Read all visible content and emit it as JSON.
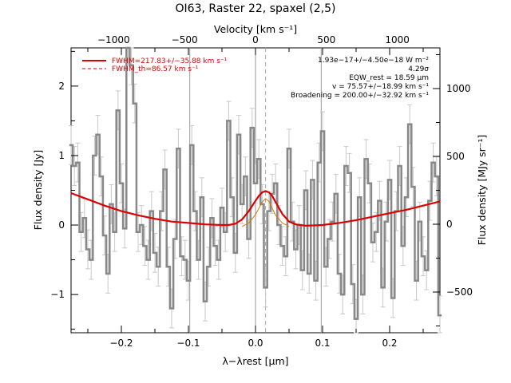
{
  "chart_data": {
    "type": "line",
    "title": "OI63, Raster 22, spaxel (2,5)",
    "xlabel": "λ−λrest [μm]",
    "ylabel": "Flux density [Jy]",
    "top_xlabel": "Velocity [km s⁻¹]",
    "right_ylabel": "Flux density [MJy sr⁻¹]",
    "xlim": [
      -0.275,
      0.275
    ],
    "ylim": [
      -1.55,
      2.55
    ],
    "top_xlim": [
      -1300,
      1300
    ],
    "right_ylim": [
      -800,
      1300
    ],
    "x_ticks": [
      -0.2,
      -0.1,
      0.0,
      0.1,
      0.2
    ],
    "x_tick_labels": [
      "−0.2",
      "−0.1",
      "0.0",
      "0.1",
      "0.2"
    ],
    "y_ticks": [
      -1,
      0,
      1,
      2
    ],
    "y_tick_labels": [
      "−1",
      "0",
      "1",
      "2"
    ],
    "top_ticks": [
      -1000,
      -500,
      0,
      500,
      1000
    ],
    "top_tick_labels": [
      "−1000",
      "−500",
      "0",
      "500",
      "1000"
    ],
    "right_ticks": [
      -500,
      0,
      500,
      1000
    ],
    "right_tick_labels": [
      "−500",
      "0",
      "500",
      "1000"
    ],
    "vertical_lines": [
      -0.098,
      0.0,
      0.098
    ],
    "dashed_line_x": 0.015,
    "legend": [
      {
        "label": "FWHM=217.83+/−35.88 km s⁻¹",
        "style": "solid",
        "color": "#dd0000"
      },
      {
        "label": "FWHM_th=86.57 km s⁻¹",
        "style": "dashed",
        "color": "#dd0000"
      }
    ],
    "annotations": [
      "1.93e−17+/−4.50e−18 W m⁻²",
      "4.29σ",
      "EQW_rest = 18.59 μm",
      "v = 75.57+/−18.99 km s⁻¹",
      "Broadening = 200.00+/−32.92 km s⁻¹"
    ],
    "series": [
      {
        "name": "Data",
        "color": "#888888",
        "x": [
          -0.275,
          -0.27,
          -0.265,
          -0.26,
          -0.255,
          -0.25,
          -0.245,
          -0.24,
          -0.235,
          -0.23,
          -0.225,
          -0.22,
          -0.215,
          -0.21,
          -0.205,
          -0.2,
          -0.195,
          -0.19,
          -0.185,
          -0.18,
          -0.175,
          -0.17,
          -0.165,
          -0.16,
          -0.155,
          -0.15,
          -0.145,
          -0.14,
          -0.135,
          -0.13,
          -0.125,
          -0.12,
          -0.115,
          -0.11,
          -0.105,
          -0.1,
          -0.095,
          -0.09,
          -0.085,
          -0.08,
          -0.075,
          -0.07,
          -0.065,
          -0.06,
          -0.055,
          -0.05,
          -0.045,
          -0.04,
          -0.035,
          -0.03,
          -0.025,
          -0.02,
          -0.015,
          -0.01,
          -0.005,
          0.0,
          0.005,
          0.01,
          0.015,
          0.02,
          0.025,
          0.03,
          0.035,
          0.04,
          0.045,
          0.05,
          0.055,
          0.06,
          0.065,
          0.07,
          0.075,
          0.08,
          0.085,
          0.09,
          0.095,
          0.1,
          0.105,
          0.11,
          0.115,
          0.12,
          0.125,
          0.13,
          0.135,
          0.14,
          0.145,
          0.15,
          0.155,
          0.16,
          0.165,
          0.17,
          0.175,
          0.18,
          0.185,
          0.19,
          0.195,
          0.2,
          0.205,
          0.21,
          0.215,
          0.22,
          0.225,
          0.23,
          0.235,
          0.24,
          0.245,
          0.25,
          0.255,
          0.26,
          0.265,
          0.27,
          0.275
        ],
        "y": [
          1.15,
          0.85,
          0.9,
          -0.1,
          0.1,
          -0.35,
          -0.5,
          1.0,
          1.3,
          0.7,
          -0.15,
          -0.7,
          0.3,
          -0.1,
          1.65,
          0.6,
          -0.05,
          2.6,
          2.3,
          1.75,
          -0.1,
          0.0,
          -0.3,
          -0.5,
          0.2,
          -0.4,
          -0.6,
          0.2,
          0.8,
          -0.6,
          -1.2,
          -0.2,
          1.1,
          -0.45,
          -0.5,
          -0.8,
          1.15,
          0.2,
          -0.5,
          0.4,
          -1.1,
          -0.6,
          0.1,
          -0.3,
          -0.5,
          0.25,
          -0.1,
          1.5,
          0.4,
          -0.4,
          1.3,
          0.3,
          0.7,
          -0.2,
          1.4,
          0.6,
          0.95,
          0.3,
          -0.9,
          0.2,
          0.45,
          0.6,
          0.0,
          -0.3,
          -0.45,
          1.1,
          0.05,
          -0.35,
          0.0,
          -0.65,
          0.5,
          -0.7,
          0.65,
          -0.8,
          0.9,
          1.35,
          -0.6,
          -0.2,
          0.05,
          0.45,
          -0.7,
          -1.0,
          0.85,
          0.75,
          -0.85,
          -1.35,
          0.4,
          -1.0,
          0.95,
          0.6,
          -0.25,
          -0.1,
          0.35,
          -0.9,
          0.05,
          0.65,
          -1.05,
          0.2,
          0.85,
          -0.3,
          0.4,
          1.45,
          0.55,
          -0.8,
          0.05,
          -0.45,
          -0.65,
          0.35,
          0.9,
          0.7,
          -1.3
        ]
      },
      {
        "name": "Fit",
        "color": "#dd0000",
        "x": [
          -0.275,
          -0.25,
          -0.225,
          -0.2,
          -0.175,
          -0.15,
          -0.125,
          -0.1,
          -0.075,
          -0.05,
          -0.04,
          -0.03,
          -0.02,
          -0.01,
          0.0,
          0.005,
          0.01,
          0.015,
          0.02,
          0.025,
          0.03,
          0.04,
          0.05,
          0.06,
          0.075,
          0.1,
          0.125,
          0.15,
          0.175,
          0.2,
          0.225,
          0.25,
          0.275
        ],
        "y": [
          0.46,
          0.37,
          0.28,
          0.2,
          0.14,
          0.09,
          0.05,
          0.03,
          0.01,
          0.0,
          0.0,
          0.02,
          0.08,
          0.2,
          0.35,
          0.42,
          0.47,
          0.49,
          0.47,
          0.42,
          0.33,
          0.16,
          0.05,
          0.01,
          -0.01,
          0.0,
          0.03,
          0.07,
          0.12,
          0.17,
          0.22,
          0.28,
          0.34
        ]
      },
      {
        "name": "Line component",
        "color": "#dd7700",
        "x": [
          -0.02,
          -0.01,
          0.0,
          0.005,
          0.01,
          0.015,
          0.02,
          0.025,
          0.03,
          0.04,
          0.05
        ],
        "y": [
          -0.02,
          0.03,
          0.15,
          0.24,
          0.33,
          0.38,
          0.34,
          0.24,
          0.14,
          0.03,
          -0.02
        ]
      }
    ]
  }
}
